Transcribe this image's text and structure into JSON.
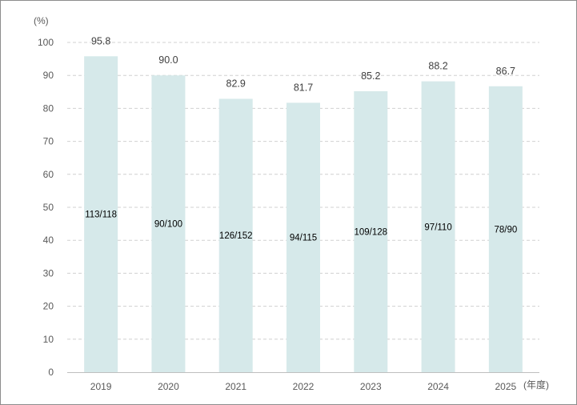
{
  "chart_data": {
    "type": "bar",
    "y_unit_label": "(%)",
    "x_unit_label": "(年度)",
    "categories": [
      "2019",
      "2020",
      "2021",
      "2022",
      "2023",
      "2024",
      "2025"
    ],
    "values": [
      95.8,
      90.0,
      82.9,
      81.7,
      85.2,
      88.2,
      86.7
    ],
    "value_labels": [
      "95.8",
      "90.0",
      "82.9",
      "81.7",
      "85.2",
      "88.2",
      "86.7"
    ],
    "inner_labels": [
      "113/118",
      "90/100",
      "126/152",
      "94/115",
      "109/128",
      "97/110",
      "78/90"
    ],
    "ylim": [
      0,
      100
    ],
    "yticks": [
      0,
      10,
      20,
      30,
      40,
      50,
      60,
      70,
      80,
      90,
      100
    ],
    "grid": true,
    "colors": {
      "bar": "#d6e9ea",
      "grid": "#d0d0d0",
      "axis": "#bfbfbf"
    }
  }
}
